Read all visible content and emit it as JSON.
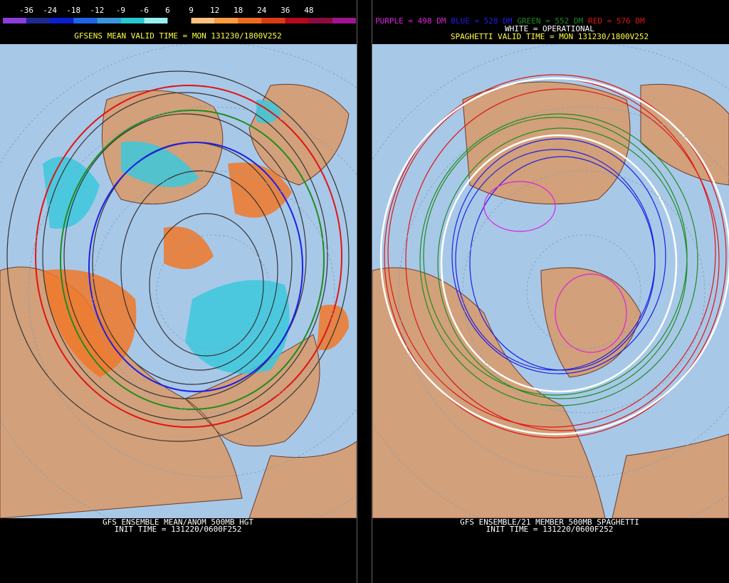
{
  "left": {
    "colorbar": {
      "ticks": [
        -36,
        -24,
        -18,
        -12,
        -9,
        -6,
        6,
        9,
        12,
        18,
        24,
        36,
        48
      ],
      "colors": [
        "#8c3cdc",
        "#1e2a8c",
        "#0a1ed2",
        "#1e64e6",
        "#3c96dc",
        "#28c8d2",
        "#96f0f0",
        "#000000",
        "#ffc080",
        "#ff9a40",
        "#f06a1e",
        "#dc3c14",
        "#b40a1e",
        "#8c0a3c",
        "#a01490"
      ]
    },
    "title": "GFSENS MEAN VALID TIME = MON 131230/1800V252",
    "footer": [
      "GFS ENSEMBLE MEAN/ANOM 500MB HGT",
      "INIT TIME = 131220/0600F252"
    ]
  },
  "right": {
    "legend": [
      {
        "label": "PURPLE = 498 DM",
        "color": "#e020e0"
      },
      {
        "label": "BLUE = 528 DM",
        "color": "#1e1ee6"
      },
      {
        "label": "GREEN = 552 DM",
        "color": "#1e8c1e"
      },
      {
        "label": "RED = 576 DM",
        "color": "#e01414"
      }
    ],
    "operational": "WHITE = OPERATIONAL",
    "title": "SPAGHETTI VALID TIME = MON 131230/1800V252",
    "footer": [
      "GFS ENSEMBLE/21 MEMBER 500MB SPAGHETTI",
      "INIT TIME = 131220/0600F252"
    ]
  }
}
